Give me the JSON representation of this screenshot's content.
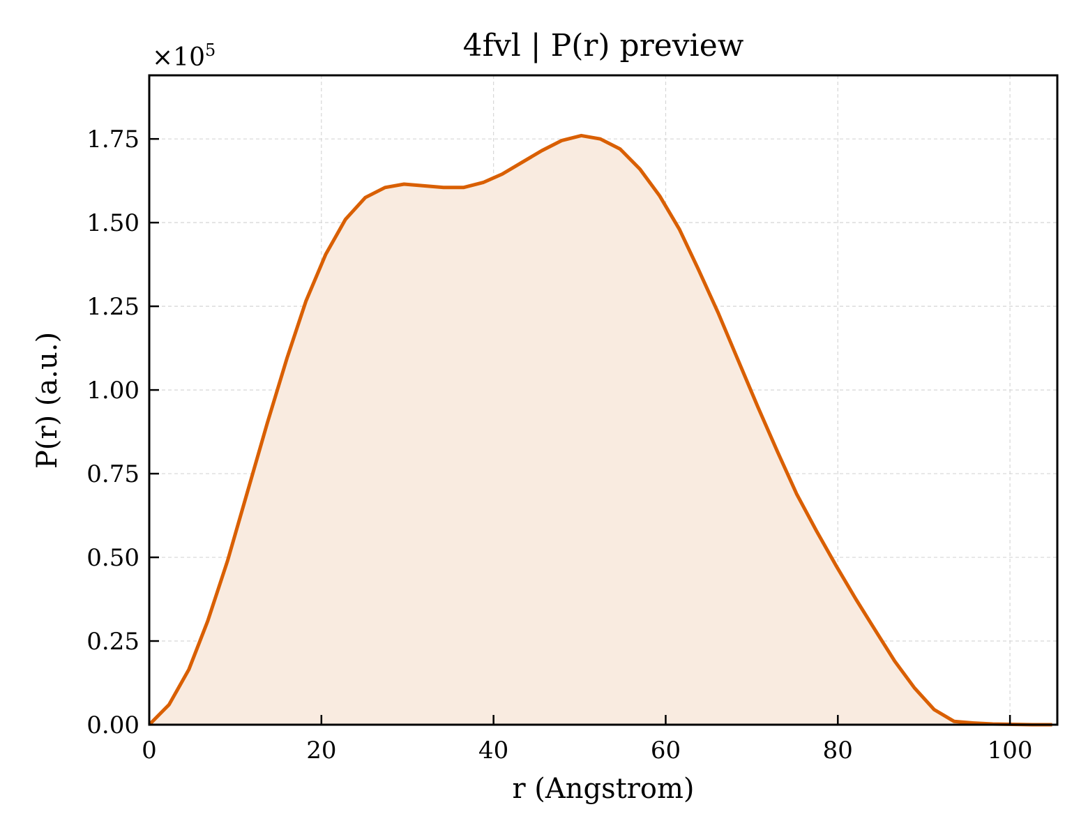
{
  "chart_data": {
    "type": "area",
    "title": "4fvl | P(r) preview",
    "xlabel": "r (Angstrom)",
    "ylabel": "P(r) (a.u.)",
    "y_offset_label": "×10",
    "y_offset_exponent": "5",
    "xlim": [
      0,
      105.5
    ],
    "ylim": [
      0,
      1.94
    ],
    "x_ticks": [
      "0",
      "20",
      "40",
      "60",
      "80",
      "100"
    ],
    "x_tick_values": [
      0,
      20,
      40,
      60,
      80,
      100
    ],
    "y_ticks": [
      "0.00",
      "0.25",
      "0.50",
      "0.75",
      "1.00",
      "1.25",
      "1.50",
      "1.75"
    ],
    "y_tick_values": [
      0,
      0.25,
      0.5,
      0.75,
      1.0,
      1.25,
      1.5,
      1.75
    ],
    "grid": true,
    "line_color": "#d95f02",
    "fill_color": "#f9ebe0",
    "series": [
      {
        "x": [
          0,
          2.3,
          4.6,
          6.8,
          9.1,
          11.4,
          13.7,
          16.0,
          18.2,
          20.5,
          22.8,
          25.1,
          27.4,
          29.6,
          31.9,
          34.2,
          36.5,
          38.8,
          41.0,
          43.3,
          45.6,
          47.9,
          50.2,
          52.4,
          54.7,
          57.0,
          59.3,
          61.6,
          63.8,
          66.1,
          68.4,
          70.7,
          73.0,
          75.2,
          77.5,
          79.8,
          82.1,
          84.4,
          86.6,
          88.9,
          91.2,
          93.5,
          95.8,
          98.0,
          100.3,
          102.6,
          104.9
        ],
        "y": [
          0.0,
          0.06,
          0.165,
          0.31,
          0.49,
          0.695,
          0.9,
          1.095,
          1.265,
          1.405,
          1.51,
          1.575,
          1.605,
          1.615,
          1.61,
          1.605,
          1.605,
          1.62,
          1.645,
          1.68,
          1.715,
          1.745,
          1.76,
          1.75,
          1.72,
          1.66,
          1.58,
          1.48,
          1.36,
          1.23,
          1.09,
          0.95,
          0.815,
          0.69,
          0.58,
          0.475,
          0.375,
          0.28,
          0.19,
          0.11,
          0.045,
          0.01,
          0.005,
          0.002,
          0.001,
          0.0,
          0.0
        ]
      }
    ]
  }
}
